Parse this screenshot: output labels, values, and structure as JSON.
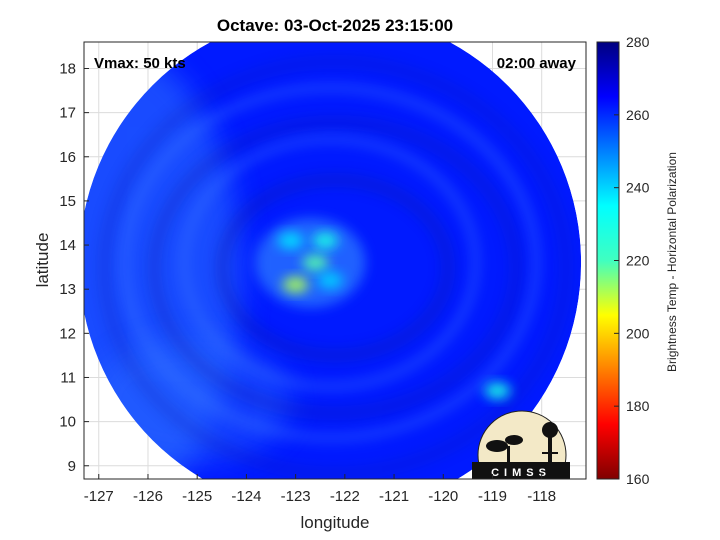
{
  "chart_data": {
    "type": "heatmap",
    "title": "Octave: 03-Oct-2025 23:15:00",
    "xlabel": "longitude",
    "ylabel": "latitude",
    "xlim": [
      -127.3,
      -117.1
    ],
    "ylim": [
      8.7,
      18.6
    ],
    "x_ticks": [
      -127,
      -126,
      -125,
      -124,
      -123,
      -122,
      -121,
      -120,
      -119,
      -118
    ],
    "y_ticks": [
      9,
      10,
      11,
      12,
      13,
      14,
      15,
      16,
      17,
      18
    ],
    "grid": true,
    "annotations": {
      "vmax": "Vmax: 50 kts",
      "time_away": "02:00 away"
    },
    "colorbar": {
      "label": "Brightness Temp - Horizontal Polarization",
      "range": [
        160,
        280
      ],
      "ticks": [
        160,
        180,
        200,
        220,
        240,
        260,
        280
      ],
      "colormap": "jet",
      "colors": [
        "#800000",
        "#ff0000",
        "#ffff00",
        "#00ffff",
        "#0000ff",
        "#000080"
      ]
    },
    "swath": {
      "center": [
        -122.3,
        13.6
      ],
      "radius_deg": 5.1,
      "background_value": 262,
      "features": [
        {
          "lon": -123.0,
          "lat": 13.1,
          "value": 215
        },
        {
          "lon": -122.6,
          "lat": 13.6,
          "value": 225
        },
        {
          "lon": -122.4,
          "lat": 14.1,
          "value": 232
        },
        {
          "lon": -123.1,
          "lat": 14.1,
          "value": 238
        },
        {
          "lon": -122.3,
          "lat": 13.2,
          "value": 240
        },
        {
          "lon": -118.9,
          "lat": 10.7,
          "value": 232
        }
      ]
    },
    "logo": "CIMSS"
  }
}
